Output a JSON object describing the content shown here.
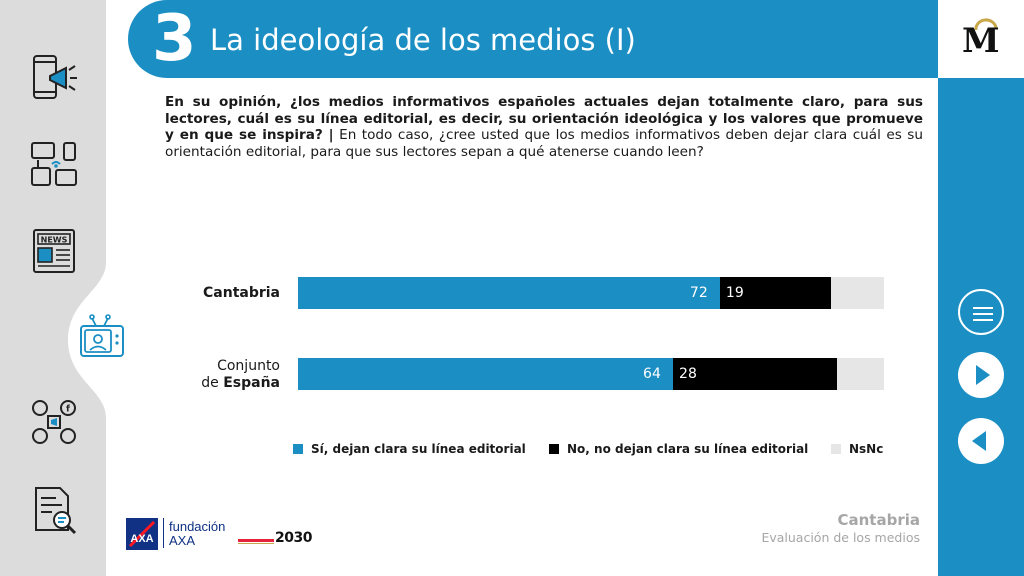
{
  "header": {
    "section_number": "3",
    "title": "La ideología de los medios (I)"
  },
  "question": {
    "bold": "En su opinión, ¿los medios informativos españoles actuales dejan totalmente claro, para sus lectores, cuál es su línea editorial, es decir, su orientación ideológica y los valores que promueve y en que se inspira? |",
    "normal": "En todo caso, ¿cree usted que los medios informativos deben dejar clara cuál es su orientación editorial, para que sus lectores sepan a qué atenerse cuando leen?"
  },
  "sidebar": {
    "icons": [
      "phone-megaphone-icon",
      "devices-icon",
      "newspaper-icon",
      "tv-presenter-icon",
      "social-media-icon",
      "document-search-icon"
    ],
    "active_index": 3
  },
  "right_rail": {
    "logo": "M",
    "buttons": [
      "menu-icon",
      "next-icon",
      "prev-icon"
    ]
  },
  "chart_data": {
    "type": "bar",
    "orientation": "horizontal",
    "stacked": true,
    "categories": [
      {
        "line1": "Cantabria",
        "line2": "",
        "bold_part": "Cantabria"
      },
      {
        "line1": "Conjunto",
        "line2": "de ",
        "bold_part": "España"
      }
    ],
    "series": [
      {
        "name": "Sí, dejan clara su línea editorial",
        "color": "#1b8fc4",
        "values": [
          72,
          64
        ],
        "labels": [
          "72",
          "64"
        ]
      },
      {
        "name": "No, no dejan clara su línea editorial",
        "color": "#000000",
        "values": [
          19,
          28
        ],
        "labels": [
          "19",
          "28"
        ]
      },
      {
        "name": "NsNc",
        "color": "#e6e6e6",
        "values": [
          9,
          8
        ],
        "labels": [
          "",
          ""
        ]
      }
    ],
    "xlim": [
      0,
      100
    ],
    "legend_position": "bottom"
  },
  "footer": {
    "region": "Cantabria",
    "subtitle": "Evaluación de los medios",
    "sponsor_line1": "fundación",
    "sponsor_line2": "AXA",
    "logo_2030": "2030"
  },
  "colors": {
    "primary": "#1b8fc4",
    "sidebar": "#dcdcdc",
    "text": "#1a1a1a",
    "muted": "#a6a6a6"
  }
}
